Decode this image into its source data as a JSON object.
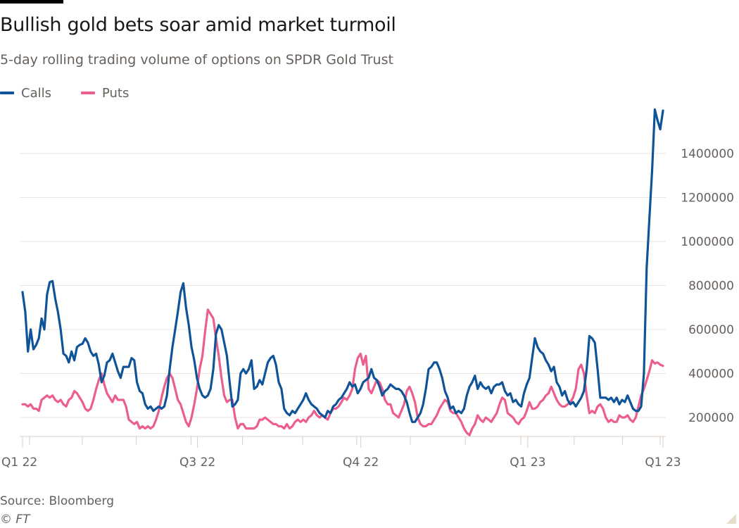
{
  "header": {
    "title": "Bullish gold bets soar amid market turmoil",
    "subtitle": "5-day rolling trading volume of options on SPDR Gold Trust"
  },
  "footer": {
    "source": "Source: Bloomberg",
    "copyright": "© FT"
  },
  "colors": {
    "calls": "#0f5499",
    "puts": "#eb5e8d",
    "grid": "#ebe3dc",
    "axis": "#d9cfc6",
    "text": "#66605c"
  },
  "chart_data": {
    "type": "line",
    "title": "Bullish gold bets soar amid market turmoil",
    "subtitle": "5-day rolling trading volume of options on SPDR Gold Trust",
    "xlabel": "",
    "ylabel": "",
    "ylim": [
      100000,
      1650000
    ],
    "yticks": [
      200000,
      400000,
      600000,
      800000,
      1000000,
      1200000,
      1400000
    ],
    "ytick_labels": [
      "200000",
      "400000",
      "600000",
      "800000",
      "1000000",
      "1200000",
      "1400000"
    ],
    "y_axis_side": "right",
    "grid": true,
    "legend": "top-left",
    "x_range": [
      "2022-01-03",
      "2023-03-17"
    ],
    "xtick_labels": [
      {
        "label": "Q1 22",
        "pos": 0.0
      },
      {
        "label": "Q3 22",
        "pos": 0.2732
      },
      {
        "label": "Q4 22",
        "pos": 0.5282
      },
      {
        "label": "Q1 23",
        "pos": 0.7888
      },
      {
        "label": "Q1 23",
        "pos": 1.0
      }
    ],
    "minor_ticks": [
      0.011,
      0.0933,
      0.1776,
      0.2632,
      0.3434,
      0.4375,
      0.5217,
      0.6055,
      0.6914,
      0.7779,
      0.8613,
      0.9369,
      0.9956
    ],
    "series": [
      {
        "name": "Calls",
        "color": "#0f5499",
        "values": [
          770000,
          680000,
          500000,
          600000,
          510000,
          530000,
          560000,
          650000,
          600000,
          760000,
          815000,
          820000,
          740000,
          680000,
          600000,
          490000,
          480000,
          450000,
          500000,
          460000,
          520000,
          530000,
          535000,
          560000,
          540000,
          500000,
          480000,
          490000,
          440000,
          360000,
          390000,
          450000,
          460000,
          490000,
          450000,
          410000,
          380000,
          430000,
          430000,
          430000,
          470000,
          460000,
          360000,
          320000,
          310000,
          260000,
          240000,
          250000,
          230000,
          240000,
          250000,
          240000,
          250000,
          300000,
          420000,
          520000,
          600000,
          680000,
          770000,
          810000,
          700000,
          620000,
          520000,
          460000,
          380000,
          330000,
          300000,
          290000,
          300000,
          330000,
          420000,
          580000,
          620000,
          600000,
          540000,
          480000,
          360000,
          250000,
          260000,
          280000,
          400000,
          420000,
          400000,
          420000,
          460000,
          330000,
          340000,
          370000,
          350000,
          400000,
          450000,
          470000,
          480000,
          440000,
          360000,
          330000,
          240000,
          220000,
          210000,
          230000,
          220000,
          240000,
          260000,
          280000,
          310000,
          280000,
          260000,
          250000,
          240000,
          220000,
          210000,
          200000,
          230000,
          220000,
          250000,
          260000,
          280000,
          290000,
          310000,
          330000,
          360000,
          340000,
          350000,
          310000,
          330000,
          360000,
          370000,
          380000,
          420000,
          380000,
          370000,
          340000,
          300000,
          320000,
          330000,
          350000,
          340000,
          330000,
          330000,
          320000,
          300000,
          270000,
          220000,
          180000,
          180000,
          200000,
          220000,
          260000,
          330000,
          420000,
          430000,
          450000,
          450000,
          420000,
          380000,
          320000,
          290000,
          240000,
          250000,
          220000,
          230000,
          220000,
          240000,
          300000,
          340000,
          360000,
          390000,
          330000,
          360000,
          340000,
          330000,
          340000,
          310000,
          340000,
          350000,
          350000,
          360000,
          320000,
          300000,
          310000,
          270000,
          280000,
          260000,
          250000,
          310000,
          350000,
          380000,
          470000,
          560000,
          520000,
          500000,
          490000,
          460000,
          440000,
          410000,
          430000,
          360000,
          340000,
          300000,
          320000,
          280000,
          260000,
          270000,
          250000,
          270000,
          290000,
          320000,
          420000,
          570000,
          560000,
          540000,
          420000,
          290000,
          290000,
          290000,
          280000,
          290000,
          270000,
          290000,
          260000,
          280000,
          270000,
          300000,
          270000,
          240000,
          230000,
          230000,
          250000,
          400000,
          880000,
          1100000,
          1320000,
          1600000,
          1550000,
          1510000,
          1595000
        ]
      },
      {
        "name": "Puts",
        "color": "#eb5e8d",
        "values": [
          260000,
          260000,
          250000,
          260000,
          240000,
          240000,
          230000,
          280000,
          290000,
          300000,
          290000,
          300000,
          280000,
          270000,
          280000,
          260000,
          250000,
          280000,
          290000,
          320000,
          310000,
          290000,
          270000,
          240000,
          230000,
          240000,
          280000,
          330000,
          370000,
          400000,
          350000,
          310000,
          290000,
          270000,
          300000,
          280000,
          280000,
          280000,
          250000,
          190000,
          180000,
          170000,
          180000,
          150000,
          160000,
          150000,
          160000,
          150000,
          160000,
          190000,
          230000,
          290000,
          340000,
          380000,
          400000,
          380000,
          330000,
          280000,
          260000,
          220000,
          180000,
          160000,
          200000,
          260000,
          330000,
          420000,
          480000,
          590000,
          690000,
          670000,
          650000,
          560000,
          480000,
          380000,
          300000,
          270000,
          280000,
          280000,
          200000,
          150000,
          170000,
          170000,
          150000,
          150000,
          150000,
          150000,
          160000,
          190000,
          190000,
          200000,
          190000,
          180000,
          170000,
          170000,
          160000,
          160000,
          150000,
          170000,
          150000,
          160000,
          180000,
          190000,
          180000,
          190000,
          180000,
          200000,
          210000,
          230000,
          210000,
          200000,
          210000,
          200000,
          190000,
          220000,
          240000,
          240000,
          250000,
          270000,
          290000,
          280000,
          300000,
          330000,
          420000,
          470000,
          490000,
          440000,
          480000,
          330000,
          310000,
          340000,
          370000,
          360000,
          330000,
          280000,
          260000,
          260000,
          220000,
          210000,
          200000,
          230000,
          260000,
          320000,
          340000,
          310000,
          270000,
          200000,
          170000,
          160000,
          160000,
          170000,
          170000,
          190000,
          210000,
          240000,
          260000,
          280000,
          270000,
          230000,
          220000,
          220000,
          200000,
          180000,
          150000,
          130000,
          120000,
          150000,
          170000,
          210000,
          190000,
          180000,
          200000,
          190000,
          180000,
          200000,
          220000,
          260000,
          290000,
          280000,
          220000,
          210000,
          200000,
          180000,
          170000,
          190000,
          200000,
          230000,
          270000,
          240000,
          240000,
          250000,
          270000,
          280000,
          300000,
          310000,
          340000,
          310000,
          280000,
          260000,
          250000,
          250000,
          260000,
          270000,
          290000,
          330000,
          420000,
          440000,
          400000,
          300000,
          220000,
          230000,
          220000,
          250000,
          260000,
          240000,
          200000,
          180000,
          190000,
          180000,
          180000,
          210000,
          200000,
          200000,
          210000,
          190000,
          180000,
          200000,
          250000,
          300000,
          330000,
          370000,
          410000,
          460000,
          445000,
          450000,
          440000,
          435000
        ]
      }
    ]
  }
}
